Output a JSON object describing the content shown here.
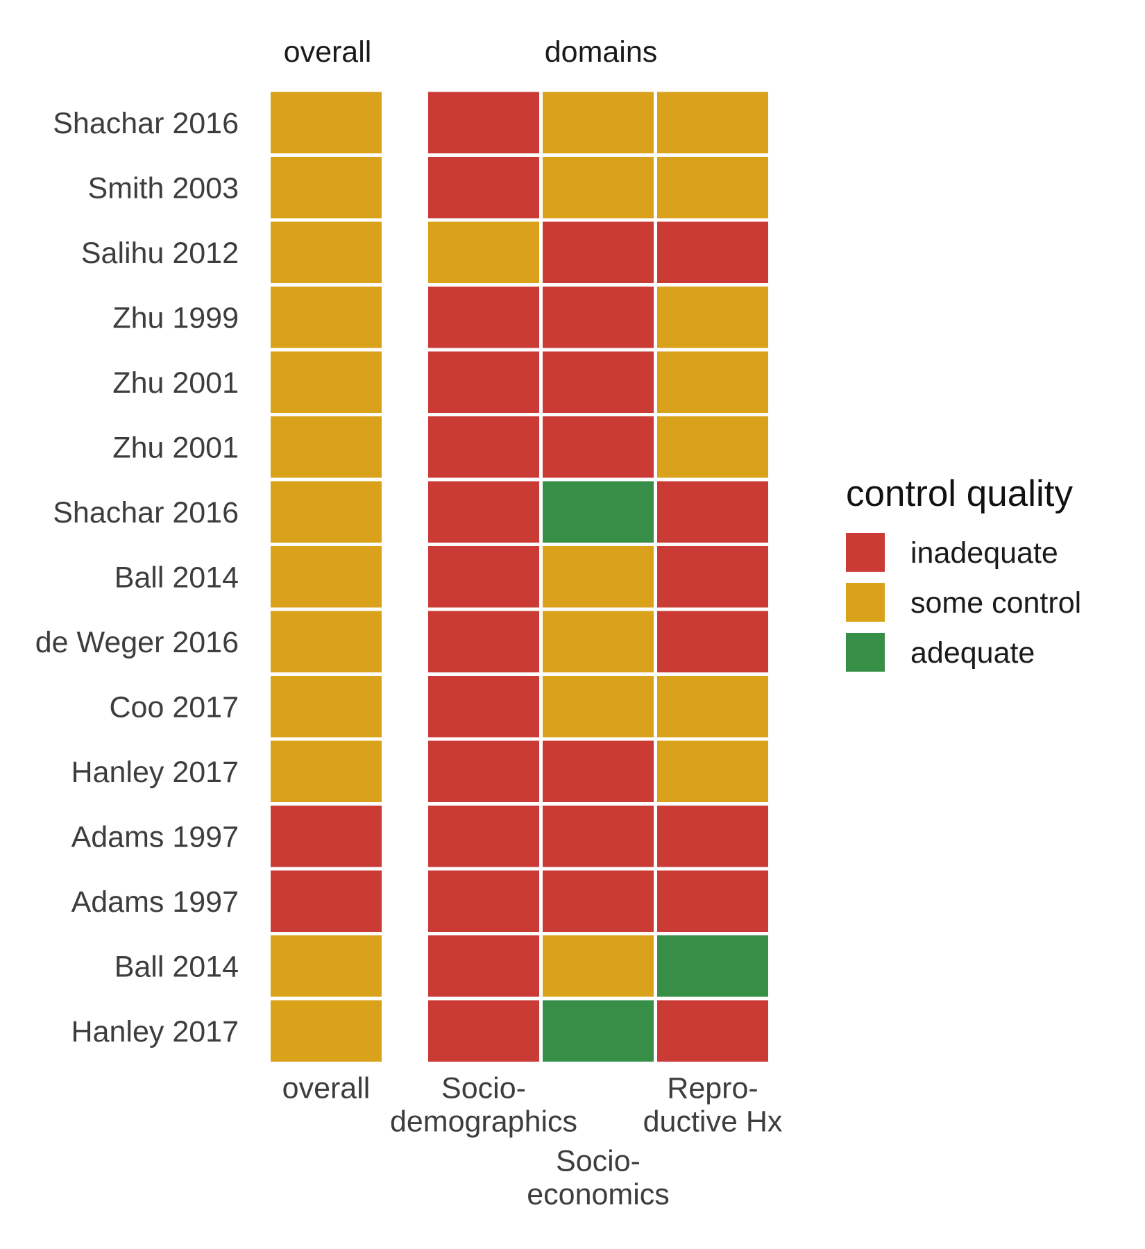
{
  "chart_data": {
    "type": "heatmap",
    "panels": [
      {
        "title": "overall",
        "columns": [
          "overall"
        ]
      },
      {
        "title": "domains",
        "columns": [
          "Socio-demographics",
          "Socio-economics",
          "Reproductive Hx"
        ]
      }
    ],
    "column_labels": [
      {
        "key": "overall",
        "lines": [
          "overall"
        ]
      },
      {
        "key": "Socio-demographics",
        "lines": [
          "Socio-",
          "demographics"
        ]
      },
      {
        "key": "Socio-economics",
        "lines": [
          "Socio-",
          "economics"
        ]
      },
      {
        "key": "Reproductive Hx",
        "lines": [
          "Repro-",
          "ductive Hx"
        ]
      }
    ],
    "rows": [
      {
        "label": "Shachar 2016",
        "values": [
          "some control",
          "inadequate",
          "some control",
          "some control"
        ]
      },
      {
        "label": "Smith 2003",
        "values": [
          "some control",
          "inadequate",
          "some control",
          "some control"
        ]
      },
      {
        "label": "Salihu 2012",
        "values": [
          "some control",
          "some control",
          "inadequate",
          "inadequate"
        ]
      },
      {
        "label": "Zhu 1999",
        "values": [
          "some control",
          "inadequate",
          "inadequate",
          "some control"
        ]
      },
      {
        "label": "Zhu 2001",
        "values": [
          "some control",
          "inadequate",
          "inadequate",
          "some control"
        ]
      },
      {
        "label": "Zhu 2001",
        "values": [
          "some control",
          "inadequate",
          "inadequate",
          "some control"
        ]
      },
      {
        "label": "Shachar 2016",
        "values": [
          "some control",
          "inadequate",
          "adequate",
          "inadequate"
        ]
      },
      {
        "label": "Ball 2014",
        "values": [
          "some control",
          "inadequate",
          "some control",
          "inadequate"
        ]
      },
      {
        "label": "de Weger 2016",
        "values": [
          "some control",
          "inadequate",
          "some control",
          "inadequate"
        ]
      },
      {
        "label": "Coo 2017",
        "values": [
          "some control",
          "inadequate",
          "some control",
          "some control"
        ]
      },
      {
        "label": "Hanley 2017",
        "values": [
          "some control",
          "inadequate",
          "inadequate",
          "some control"
        ]
      },
      {
        "label": "Adams 1997",
        "values": [
          "inadequate",
          "inadequate",
          "inadequate",
          "inadequate"
        ]
      },
      {
        "label": "Adams 1997",
        "values": [
          "inadequate",
          "inadequate",
          "inadequate",
          "inadequate"
        ]
      },
      {
        "label": "Ball 2014",
        "values": [
          "some control",
          "inadequate",
          "some control",
          "adequate"
        ]
      },
      {
        "label": "Hanley 2017",
        "values": [
          "some control",
          "inadequate",
          "adequate",
          "inadequate"
        ]
      }
    ],
    "legend": {
      "title": "control quality",
      "position": "right",
      "items": [
        {
          "label": "inadequate",
          "color": "#cb3b36"
        },
        {
          "label": "some control",
          "color": "#d9a21a"
        },
        {
          "label": "adequate",
          "color": "#378f47"
        }
      ]
    },
    "grid": false
  }
}
